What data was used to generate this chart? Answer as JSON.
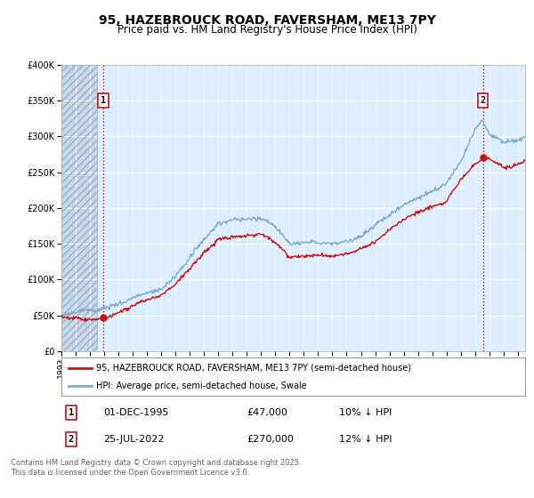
{
  "title": "95, HAZEBROUCK ROAD, FAVERSHAM, ME13 7PY",
  "subtitle": "Price paid vs. HM Land Registry's House Price Index (HPI)",
  "ylim": [
    0,
    400000
  ],
  "yticks": [
    0,
    50000,
    100000,
    150000,
    200000,
    250000,
    300000,
    350000,
    400000
  ],
  "ytick_labels": [
    "£0",
    "£50K",
    "£100K",
    "£150K",
    "£200K",
    "£250K",
    "£300K",
    "£350K",
    "£400K"
  ],
  "background_color": "#ffffff",
  "plot_bg_color": "#ddeeff",
  "grid_color": "#ffffff",
  "marker1_x": 1995.92,
  "marker1_y": 47000,
  "marker1_label": "1",
  "marker1_date": "01-DEC-1995",
  "marker1_price": "£47,000",
  "marker1_hpi": "10% ↓ HPI",
  "marker2_x": 2022.56,
  "marker2_y": 270000,
  "marker2_label": "2",
  "marker2_date": "25-JUL-2022",
  "marker2_price": "£270,000",
  "marker2_hpi": "12% ↓ HPI",
  "line1_color": "#cc1111",
  "line2_color": "#7aaad0",
  "legend1": "95, HAZEBROUCK ROAD, FAVERSHAM, ME13 7PY (semi-detached house)",
  "legend2": "HPI: Average price, semi-detached house, Swale",
  "footnote": "Contains HM Land Registry data © Crown copyright and database right 2025.\nThis data is licensed under the Open Government Licence v3.0.",
  "title_fontsize": 10,
  "subtitle_fontsize": 8.5,
  "tick_fontsize": 7,
  "xmin": 1993.0,
  "xmax": 2025.5,
  "hatch_end": 1995.5
}
